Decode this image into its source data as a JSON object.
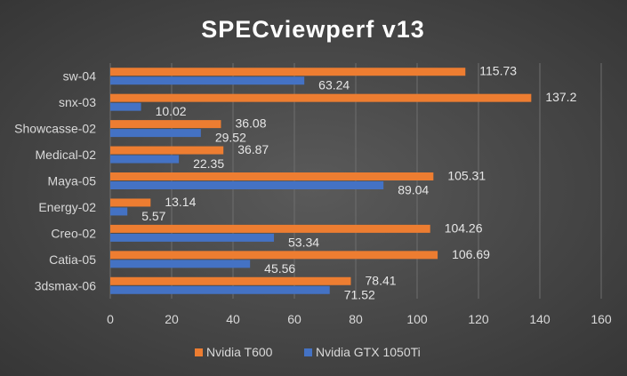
{
  "chart_data": {
    "type": "bar",
    "orientation": "horizontal",
    "title": "SPECviewperf v13",
    "categories": [
      "sw-04",
      "snx-03",
      "Showcasse-02",
      "Medical-02",
      "Maya-05",
      "Energy-02",
      "Creo-02",
      "Catia-05",
      "3dsmax-06"
    ],
    "series": [
      {
        "name": "Nvidia T600",
        "color": "#ed7d31",
        "values": [
          115.73,
          137.2,
          36.08,
          36.87,
          105.31,
          13.14,
          104.26,
          106.69,
          78.41
        ],
        "labels": [
          "115.73",
          "137.2",
          "36.08",
          "36.87",
          "105.31",
          "13.14",
          "104.26",
          "106.69",
          "78.41"
        ]
      },
      {
        "name": "Nvidia GTX 1050Ti",
        "color": "#4472c4",
        "values": [
          63.24,
          10.02,
          29.52,
          22.35,
          89.04,
          5.57,
          53.34,
          45.56,
          71.52
        ],
        "labels": [
          "63.24",
          "10.02",
          "29.52",
          "22.35",
          "89.04",
          "5.57",
          "53.34",
          "45.56",
          "71.52"
        ]
      }
    ],
    "xlim": [
      0,
      160
    ],
    "xticks": [
      "0",
      "20",
      "40",
      "60",
      "80",
      "100",
      "120",
      "140",
      "160"
    ],
    "grid": true,
    "legend_position": "bottom"
  }
}
